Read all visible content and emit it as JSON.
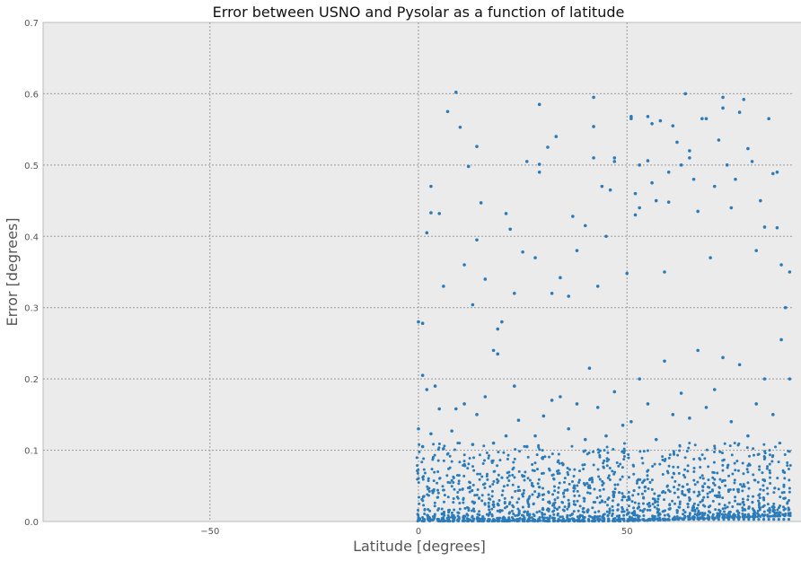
{
  "chart_data": {
    "type": "scatter",
    "title": "Error between USNO and Pysolar as a function of latitude",
    "xlabel": "Latitude [degrees]",
    "ylabel": "Error [degrees]",
    "xlim": [
      -90,
      90
    ],
    "ylim": [
      0,
      0.7
    ],
    "xticks": [
      -50,
      0,
      50
    ],
    "yticks": [
      0.0,
      0.1,
      0.2,
      0.3,
      0.4,
      0.5,
      0.6,
      0.7
    ],
    "xtick_labels": [
      "−50",
      "0",
      "50"
    ],
    "ytick_labels": [
      "0.0",
      "0.1",
      "0.2",
      "0.3",
      "0.4",
      "0.5",
      "0.6",
      "0.7"
    ],
    "grid": true,
    "marker_color": "#2b7bb9",
    "background_color": "#ebebeb",
    "series": [
      {
        "points": [
          [
            0,
            0.28
          ],
          [
            1,
            0.205
          ],
          [
            1,
            0.278
          ],
          [
            2,
            0.405
          ],
          [
            3,
            0.433
          ],
          [
            3,
            0.47
          ],
          [
            5,
            0.432
          ],
          [
            6,
            0.33
          ],
          [
            7,
            0.575
          ],
          [
            9,
            0.602
          ],
          [
            10,
            0.553
          ],
          [
            11,
            0.36
          ],
          [
            12,
            0.498
          ],
          [
            13,
            0.304
          ],
          [
            14,
            0.526
          ],
          [
            14,
            0.395
          ],
          [
            15,
            0.447
          ],
          [
            16,
            0.34
          ],
          [
            18,
            0.24
          ],
          [
            19,
            0.27
          ],
          [
            20,
            0.28
          ],
          [
            21,
            0.432
          ],
          [
            22,
            0.41
          ],
          [
            23,
            0.32
          ],
          [
            25,
            0.378
          ],
          [
            26,
            0.505
          ],
          [
            28,
            0.37
          ],
          [
            29,
            0.585
          ],
          [
            29,
            0.501
          ],
          [
            29,
            0.49
          ],
          [
            31,
            0.525
          ],
          [
            32,
            0.32
          ],
          [
            33,
            0.54
          ],
          [
            34,
            0.342
          ],
          [
            36,
            0.316
          ],
          [
            37,
            0.428
          ],
          [
            38,
            0.38
          ],
          [
            40,
            0.415
          ],
          [
            42,
            0.595
          ],
          [
            42,
            0.554
          ],
          [
            42,
            0.51
          ],
          [
            43,
            0.33
          ],
          [
            44,
            0.47
          ],
          [
            45,
            0.4
          ],
          [
            46,
            0.465
          ],
          [
            47,
            0.505
          ],
          [
            47,
            0.51
          ],
          [
            50,
            0.348
          ],
          [
            51,
            0.565
          ],
          [
            51,
            0.568
          ],
          [
            52,
            0.43
          ],
          [
            52,
            0.46
          ],
          [
            53,
            0.5
          ],
          [
            53,
            0.44
          ],
          [
            55,
            0.506
          ],
          [
            55,
            0.568
          ],
          [
            56,
            0.558
          ],
          [
            56,
            0.475
          ],
          [
            57,
            0.45
          ],
          [
            58,
            0.562
          ],
          [
            59,
            0.35
          ],
          [
            60,
            0.49
          ],
          [
            60,
            0.448
          ],
          [
            61,
            0.555
          ],
          [
            62,
            0.532
          ],
          [
            63,
            0.5
          ],
          [
            64,
            0.6
          ],
          [
            65,
            0.51
          ],
          [
            65,
            0.52
          ],
          [
            66,
            0.48
          ],
          [
            67,
            0.435
          ],
          [
            68,
            0.565
          ],
          [
            69,
            0.565
          ],
          [
            70,
            0.37
          ],
          [
            71,
            0.47
          ],
          [
            72,
            0.535
          ],
          [
            73,
            0.595
          ],
          [
            73,
            0.58
          ],
          [
            74,
            0.5
          ],
          [
            75,
            0.44
          ],
          [
            76,
            0.48
          ],
          [
            77,
            0.574
          ],
          [
            78,
            0.592
          ],
          [
            79,
            0.523
          ],
          [
            80,
            0.505
          ],
          [
            81,
            0.38
          ],
          [
            82,
            0.45
          ],
          [
            83,
            0.413
          ],
          [
            84,
            0.565
          ],
          [
            85,
            0.488
          ],
          [
            86,
            0.49
          ],
          [
            86,
            0.412
          ],
          [
            87,
            0.36
          ],
          [
            88,
            0.3
          ],
          [
            89,
            0.35
          ],
          [
            89,
            0.2
          ],
          [
            0,
            0.13
          ],
          [
            1,
            0.105
          ],
          [
            2,
            0.185
          ],
          [
            3,
            0.123
          ],
          [
            4,
            0.19
          ],
          [
            5,
            0.158
          ],
          [
            6,
            0.102
          ],
          [
            8,
            0.127
          ],
          [
            9,
            0.158
          ],
          [
            11,
            0.165
          ],
          [
            13,
            0.108
          ],
          [
            14,
            0.15
          ],
          [
            16,
            0.175
          ],
          [
            18,
            0.11
          ],
          [
            19,
            0.235
          ],
          [
            21,
            0.12
          ],
          [
            23,
            0.19
          ],
          [
            24,
            0.142
          ],
          [
            26,
            0.105
          ],
          [
            28,
            0.12
          ],
          [
            30,
            0.148
          ],
          [
            32,
            0.17
          ],
          [
            34,
            0.175
          ],
          [
            36,
            0.13
          ],
          [
            38,
            0.165
          ],
          [
            40,
            0.115
          ],
          [
            41,
            0.215
          ],
          [
            43,
            0.16
          ],
          [
            45,
            0.12
          ],
          [
            47,
            0.182
          ],
          [
            49,
            0.135
          ],
          [
            51,
            0.14
          ],
          [
            53,
            0.2
          ],
          [
            55,
            0.165
          ],
          [
            57,
            0.115
          ],
          [
            59,
            0.225
          ],
          [
            61,
            0.15
          ],
          [
            63,
            0.18
          ],
          [
            65,
            0.145
          ],
          [
            67,
            0.24
          ],
          [
            69,
            0.16
          ],
          [
            71,
            0.185
          ],
          [
            73,
            0.23
          ],
          [
            75,
            0.14
          ],
          [
            77,
            0.22
          ],
          [
            79,
            0.12
          ],
          [
            81,
            0.165
          ],
          [
            83,
            0.2
          ],
          [
            85,
            0.15
          ],
          [
            87,
            0.255
          ]
        ]
      }
    ]
  }
}
